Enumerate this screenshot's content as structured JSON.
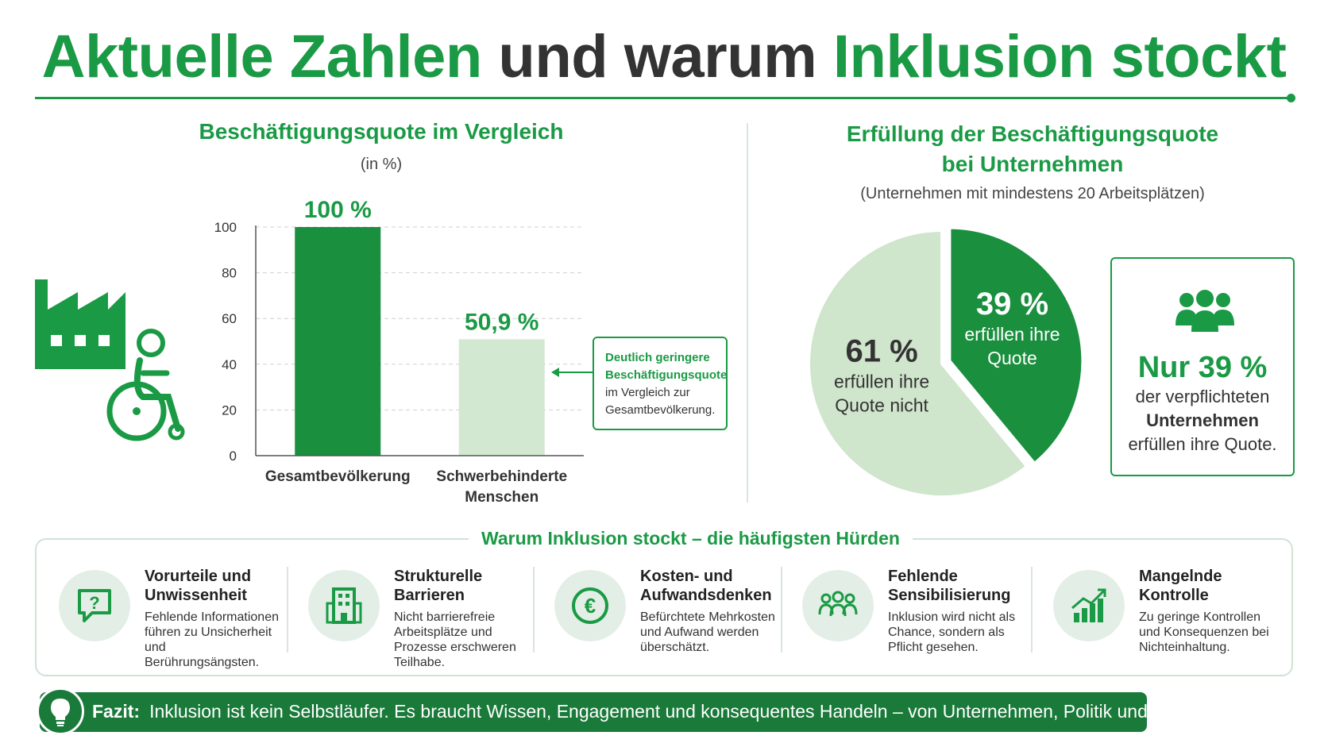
{
  "title": {
    "part1": "Aktuelle Zahlen",
    "part2": "und warum",
    "part3": "Inklusion stockt"
  },
  "left_section": {
    "title": "Beschäftigungsquote im Vergleich",
    "subtitle": "(in %)"
  },
  "callout": {
    "bold1": "Deutlich geringere",
    "bold2": "Beschäftigungsquote",
    "line3": "im Vergleich zur",
    "line4": "Gesamtbevölkerung."
  },
  "right_section": {
    "title_line1": "Erfüllung der Beschäftigungsquote",
    "title_line2": "bei Unternehmen",
    "subtitle": "(Unternehmen mit mindestens 20 Arbeitsplätzen)"
  },
  "nur_box": {
    "big": "Nur 39 %",
    "line1": "der verpflichteten",
    "line2": "Unternehmen",
    "line3": "erfüllen ihre Quote."
  },
  "hurdles_title": "Warum Inklusion stockt – die häufigsten Hürden",
  "hurdles": [
    {
      "title": "Vorurteile und Unwissenheit",
      "desc": "Fehlende Informationen führen zu Unsicherheit und Berührungsängsten.",
      "icon": "question-bubble-icon"
    },
    {
      "title": "Strukturelle Barrieren",
      "desc": "Nicht barrierefreie Arbeitsplätze und Prozesse erschweren Teilhabe.",
      "icon": "building-icon"
    },
    {
      "title": "Kosten- und Aufwandsdenken",
      "desc": "Befürchtete Mehrkosten und Aufwand werden überschätzt.",
      "icon": "euro-icon"
    },
    {
      "title": "Fehlende Sensibilisierung",
      "desc": "Inklusion wird nicht als Chance, sondern als Pflicht gesehen.",
      "icon": "people-group-icon"
    },
    {
      "title": "Mangelnde Kontrolle",
      "desc": "Zu geringe Kontrollen und Konsequenzen bei Nichteinhaltung.",
      "icon": "growth-chart-icon"
    }
  ],
  "fazit": {
    "label": "Fazit:",
    "text": "Inklusion ist kein Selbstläufer. Es braucht Wissen, Engagement und konsequentes Handeln – von Unternehmen, Politik und Gesellschaft."
  },
  "colors": {
    "green": "#1a9a45",
    "dark_green": "#1a7a3a",
    "light_green": "#c9e3c9",
    "text": "#333333"
  },
  "chart_data": [
    {
      "type": "bar",
      "categories": [
        "Gesamtbevölkerung",
        "Schwerbehinderte Menschen"
      ],
      "category_lines": [
        [
          "Gesamtbevölkerung"
        ],
        [
          "Schwerbehinderte",
          "Menschen"
        ]
      ],
      "values": [
        100,
        50.9
      ],
      "data_labels": [
        "100 %",
        "50,9 %"
      ],
      "colors": [
        "#1a8f3e",
        "#d3e8d1"
      ],
      "title": "Beschäftigungsquote im Vergleich",
      "ylabel": "",
      "ylim": [
        0,
        100
      ],
      "yticks": [
        0,
        20,
        40,
        60,
        80,
        100
      ],
      "grid": true
    },
    {
      "type": "pie",
      "labels": [
        "erfüllen ihre Quote nicht",
        "erfüllen ihre Quote"
      ],
      "label_lines": [
        [
          "erfüllen ihre",
          "Quote nicht"
        ],
        [
          "erfüllen ihre",
          "Quote"
        ]
      ],
      "values": [
        61,
        39
      ],
      "value_labels": [
        "61 %",
        "39 %"
      ],
      "colors": [
        "#cfe5cc",
        "#1a8f3e"
      ],
      "title": "Erfüllung der Beschäftigungsquote bei Unternehmen"
    }
  ]
}
